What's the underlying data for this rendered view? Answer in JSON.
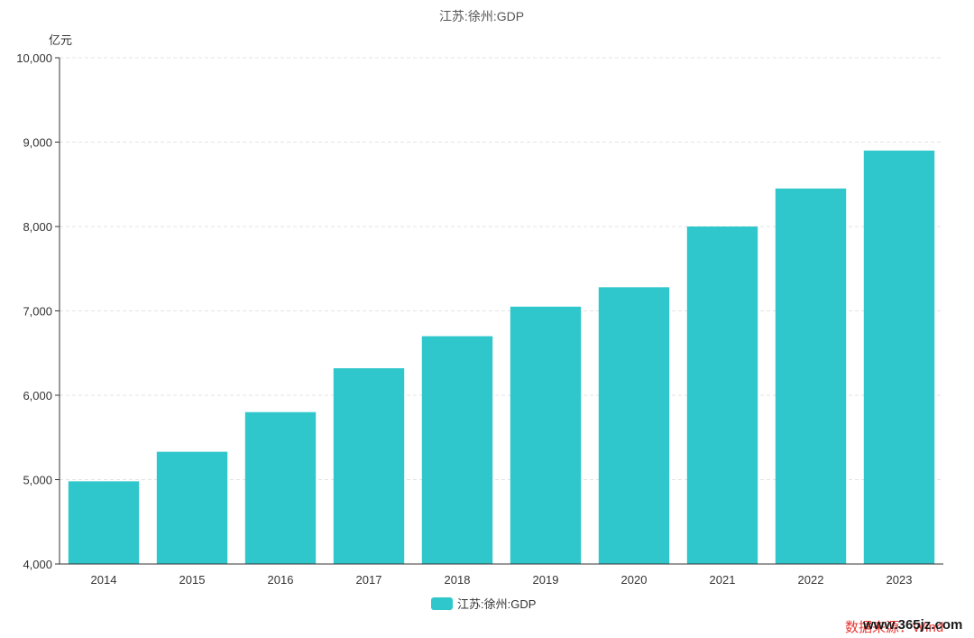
{
  "chart_data": {
    "type": "bar",
    "title": "江苏:徐州:GDP",
    "ylabel": "亿元",
    "xlabel": "",
    "categories": [
      "2014",
      "2015",
      "2016",
      "2017",
      "2018",
      "2019",
      "2020",
      "2021",
      "2022",
      "2023"
    ],
    "series": [
      {
        "name": "江苏:徐州:GDP",
        "values": [
          4980,
          5330,
          5800,
          6320,
          6700,
          7050,
          7280,
          8000,
          8450,
          8900
        ],
        "color": "#2fc7cb"
      }
    ],
    "ylim": [
      4000,
      10000
    ],
    "yticks": [
      4000,
      5000,
      6000,
      7000,
      8000,
      9000,
      10000
    ],
    "ytick_labels": [
      "4,000",
      "5,000",
      "6,000",
      "7,000",
      "8,000",
      "9,000",
      "10,000"
    ],
    "grid": true,
    "legend": "bottom-center"
  },
  "watermark": {
    "source_text": "数据来源：Wind",
    "site_text": "www.365jz.com"
  }
}
